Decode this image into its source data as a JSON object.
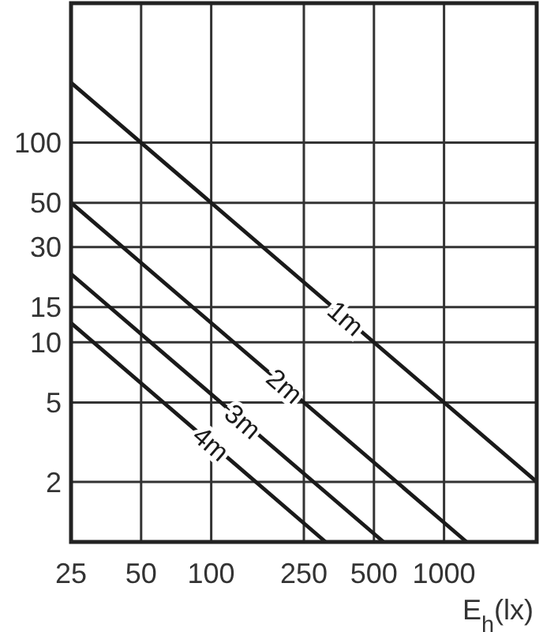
{
  "chart_data": {
    "type": "line",
    "xlabel": "E$_{h}$(lx)",
    "log": "xy",
    "grid": true,
    "legend": false,
    "xlim": [
      25,
      2500
    ],
    "xticks": [
      25,
      50,
      100,
      250,
      500,
      1000
    ],
    "ylim": [
      1,
      500
    ],
    "yticks": [
      2,
      5,
      10,
      15,
      30,
      50,
      100
    ],
    "series": [
      {
        "name": "1m",
        "color": "#1a1a1a",
        "x": [
          25,
          2500
        ],
        "values": [
          200,
          2
        ]
      },
      {
        "name": "2m",
        "color": "#1a1a1a",
        "x": [
          25,
          1250
        ],
        "values": [
          50,
          1
        ]
      },
      {
        "name": "3m",
        "color": "#1a1a1a",
        "x": [
          25,
          550
        ],
        "values": [
          22,
          1
        ]
      },
      {
        "name": "4m",
        "color": "#1a1a1a",
        "x": [
          25,
          310
        ],
        "values": [
          12.5,
          1
        ]
      }
    ]
  }
}
